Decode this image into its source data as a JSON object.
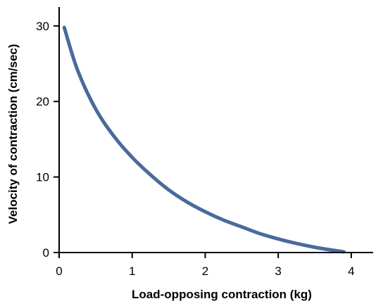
{
  "chart_data": {
    "type": "line",
    "title": "",
    "xlabel": "Load-opposing contraction (kg)",
    "ylabel": "Velocity of contraction (cm/sec)",
    "xlim": [
      0,
      4.3
    ],
    "ylim": [
      0,
      32.5
    ],
    "xticks": [
      0,
      1,
      2,
      3,
      4
    ],
    "yticks": [
      0,
      10,
      20,
      30
    ],
    "grid": false,
    "legend": "none",
    "series": [
      {
        "color": "#4a6a9c",
        "points": [
          {
            "x": 0.07,
            "y": 29.8
          },
          {
            "x": 0.25,
            "y": 24.2
          },
          {
            "x": 0.5,
            "y": 19.0
          },
          {
            "x": 0.75,
            "y": 15.4
          },
          {
            "x": 1.0,
            "y": 12.6
          },
          {
            "x": 1.25,
            "y": 10.3
          },
          {
            "x": 1.5,
            "y": 8.3
          },
          {
            "x": 1.75,
            "y": 6.7
          },
          {
            "x": 2.0,
            "y": 5.4
          },
          {
            "x": 2.25,
            "y": 4.3
          },
          {
            "x": 2.5,
            "y": 3.4
          },
          {
            "x": 2.75,
            "y": 2.5
          },
          {
            "x": 3.0,
            "y": 1.8
          },
          {
            "x": 3.25,
            "y": 1.2
          },
          {
            "x": 3.5,
            "y": 0.7
          },
          {
            "x": 3.75,
            "y": 0.3
          },
          {
            "x": 3.9,
            "y": 0.1
          }
        ]
      }
    ]
  }
}
